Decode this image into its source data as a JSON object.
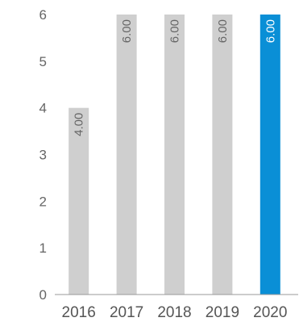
{
  "chart_data": {
    "type": "bar",
    "title": "",
    "xlabel": "",
    "ylabel": "",
    "categories": [
      "2016",
      "2017",
      "2018",
      "2019",
      "2020"
    ],
    "values": [
      4.0,
      6.0,
      6.0,
      6.0,
      6.0
    ],
    "data_labels": [
      "4.00",
      "6.00",
      "6.00",
      "6.00",
      "6.00"
    ],
    "ylim": [
      0,
      6
    ],
    "yticks": [
      "0",
      "1",
      "2",
      "3",
      "4",
      "5",
      "6"
    ],
    "highlight_index": 4,
    "grid": false,
    "colors": {
      "bar": "#cfcfcf",
      "highlight": "#0a8fd6",
      "label": "#666666",
      "highlight_label": "#ffffff",
      "axis": "#999999"
    }
  }
}
